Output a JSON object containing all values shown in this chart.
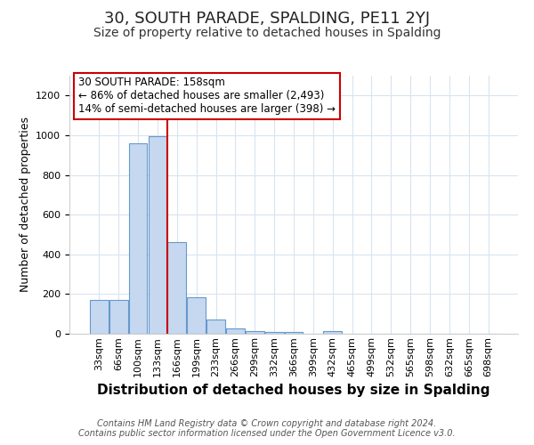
{
  "title": "30, SOUTH PARADE, SPALDING, PE11 2YJ",
  "subtitle": "Size of property relative to detached houses in Spalding",
  "xlabel": "Distribution of detached houses by size in Spalding",
  "ylabel": "Number of detached properties",
  "bar_labels": [
    "33sqm",
    "66sqm",
    "100sqm",
    "133sqm",
    "166sqm",
    "199sqm",
    "233sqm",
    "266sqm",
    "299sqm",
    "332sqm",
    "366sqm",
    "399sqm",
    "432sqm",
    "465sqm",
    "499sqm",
    "532sqm",
    "565sqm",
    "598sqm",
    "632sqm",
    "665sqm",
    "698sqm"
  ],
  "bar_values": [
    170,
    170,
    960,
    995,
    460,
    185,
    70,
    25,
    15,
    10,
    10,
    0,
    15,
    0,
    0,
    0,
    0,
    0,
    0,
    0,
    0
  ],
  "bar_color": "#c5d8f0",
  "bar_edge_color": "#6699cc",
  "red_line_bin": 4,
  "red_line_color": "#cc0000",
  "annotation_line1": "30 SOUTH PARADE: 158sqm",
  "annotation_line2": "← 86% of detached houses are smaller (2,493)",
  "annotation_line3": "14% of semi-detached houses are larger (398) →",
  "annotation_box_color": "#ffffff",
  "annotation_box_edge": "#cc0000",
  "ylim": [
    0,
    1300
  ],
  "yticks": [
    0,
    200,
    400,
    600,
    800,
    1000,
    1200
  ],
  "footer_text": "Contains HM Land Registry data © Crown copyright and database right 2024.\nContains public sector information licensed under the Open Government Licence v3.0.",
  "bg_color": "#ffffff",
  "grid_color": "#d8e4f0",
  "title_fontsize": 13,
  "subtitle_fontsize": 10,
  "xlabel_fontsize": 11,
  "ylabel_fontsize": 9,
  "tick_fontsize": 8,
  "footer_fontsize": 7
}
